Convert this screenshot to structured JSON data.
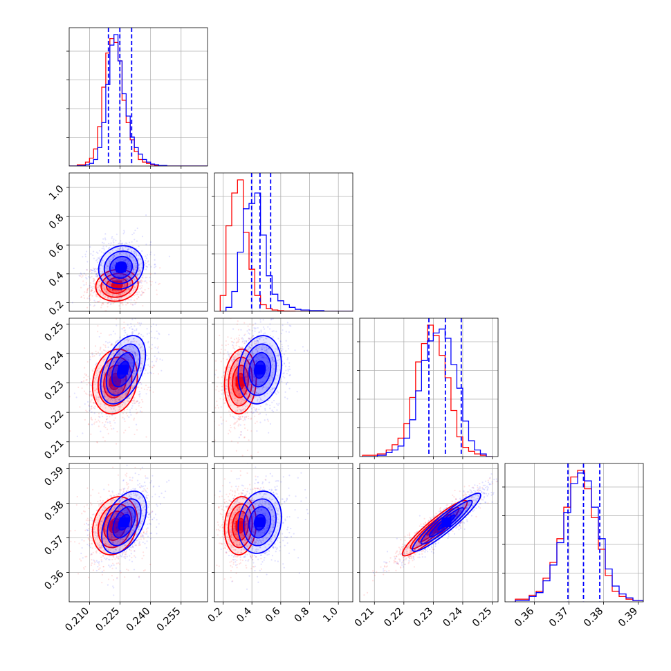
{
  "chart_data": {
    "type": "corner",
    "parameters": 4,
    "series_colors": {
      "red": "#ff0000",
      "blue": "#0000ff"
    },
    "axes": {
      "p0": {
        "range": [
          0.2,
          0.268
        ],
        "ticks": [
          "0.210",
          "0.225",
          "0.240",
          "0.255"
        ]
      },
      "p1": {
        "range": [
          0.14,
          1.1
        ],
        "ticks": [
          "0.2",
          "0.4",
          "0.6",
          "0.8",
          "1.0"
        ]
      },
      "p2": {
        "range": [
          0.205,
          0.252
        ],
        "ticks": [
          "0.21",
          "0.22",
          "0.23",
          "0.24",
          "0.25"
        ]
      },
      "p3": {
        "range": [
          0.3515,
          0.3915
        ],
        "ticks": [
          "0.36",
          "0.37",
          "0.38",
          "0.39"
        ]
      }
    },
    "marginals": [
      {
        "param": "p0",
        "bin_edges": [
          0.2,
          0.204,
          0.208,
          0.21,
          0.212,
          0.214,
          0.216,
          0.218,
          0.22,
          0.222,
          0.224,
          0.226,
          0.228,
          0.23,
          0.232,
          0.234,
          0.236,
          0.238,
          0.24,
          0.242,
          0.244,
          0.248,
          0.268
        ],
        "red": [
          0.0,
          0.01,
          0.03,
          0.06,
          0.13,
          0.3,
          0.6,
          0.86,
          0.97,
          0.94,
          0.8,
          0.5,
          0.33,
          0.2,
          0.11,
          0.05,
          0.03,
          0.02,
          0.01,
          0.005,
          0.002,
          0.0
        ],
        "blue": [
          0.0,
          0.002,
          0.01,
          0.02,
          0.05,
          0.14,
          0.33,
          0.62,
          0.92,
          1.0,
          0.8,
          0.55,
          0.38,
          0.22,
          0.14,
          0.09,
          0.05,
          0.03,
          0.015,
          0.01,
          0.004,
          0.0
        ],
        "quantiles": [
          0.2193,
          0.2249,
          0.2307
        ]
      },
      {
        "param": "p1",
        "bin_edges": [
          0.18,
          0.22,
          0.26,
          0.3,
          0.34,
          0.38,
          0.42,
          0.46,
          0.5,
          0.54,
          0.58,
          0.62,
          0.66,
          0.7,
          0.74,
          0.8,
          0.9,
          1.1
        ],
        "red": [
          0.12,
          0.65,
          0.9,
          1.0,
          0.6,
          0.32,
          0.12,
          0.05,
          0.02,
          0.01,
          0.005,
          0.002,
          0.001,
          0.0,
          0.0,
          0.0,
          0.0
        ],
        "blue": [
          0.0,
          0.03,
          0.15,
          0.45,
          0.78,
          0.82,
          0.9,
          0.58,
          0.27,
          0.13,
          0.08,
          0.05,
          0.03,
          0.015,
          0.01,
          0.005,
          0.0
        ],
        "quantiles": [
          0.398,
          0.456,
          0.53
        ]
      },
      {
        "param": "p2",
        "bin_edges": [
          0.206,
          0.211,
          0.214,
          0.216,
          0.218,
          0.22,
          0.222,
          0.224,
          0.226,
          0.228,
          0.23,
          0.232,
          0.234,
          0.236,
          0.238,
          0.24,
          0.242,
          0.244,
          0.246,
          0.248,
          0.25
        ],
        "red": [
          0.01,
          0.02,
          0.05,
          0.09,
          0.14,
          0.25,
          0.45,
          0.72,
          0.86,
          1.0,
          0.92,
          0.77,
          0.6,
          0.35,
          0.15,
          0.07,
          0.04,
          0.02,
          0.01,
          0.0
        ],
        "blue": [
          0.0,
          0.01,
          0.03,
          0.05,
          0.08,
          0.14,
          0.28,
          0.5,
          0.73,
          0.88,
          0.94,
          0.97,
          0.9,
          0.7,
          0.52,
          0.27,
          0.12,
          0.05,
          0.02,
          0.0
        ],
        "quantiles": [
          0.2285,
          0.2341,
          0.2395
        ]
      },
      {
        "param": "p3",
        "bin_edges": [
          0.3545,
          0.3585,
          0.3605,
          0.3625,
          0.3645,
          0.3665,
          0.3685,
          0.3705,
          0.3725,
          0.3745,
          0.3765,
          0.3785,
          0.3805,
          0.3825,
          0.3845,
          0.3865,
          0.3885,
          0.3915
        ],
        "red": [
          0.02,
          0.05,
          0.08,
          0.18,
          0.3,
          0.48,
          0.72,
          0.95,
          1.0,
          0.86,
          0.64,
          0.4,
          0.2,
          0.08,
          0.04,
          0.02,
          0.01
        ],
        "blue": [
          0.01,
          0.04,
          0.07,
          0.16,
          0.28,
          0.45,
          0.68,
          0.9,
          0.98,
          0.92,
          0.72,
          0.48,
          0.25,
          0.12,
          0.06,
          0.03,
          0.01
        ],
        "quantiles": [
          0.3697,
          0.3742,
          0.3789
        ]
      }
    ],
    "joint": [
      {
        "x": "p0",
        "y": "p1",
        "red": {
          "mean": [
            0.2235,
            0.32
          ],
          "sd": [
            0.0052,
            0.055
          ],
          "rho": 0.1
        },
        "blue": {
          "mean": [
            0.2255,
            0.445
          ],
          "sd": [
            0.0055,
            0.075
          ],
          "rho": 0.1
        }
      },
      {
        "x": "p0",
        "y": "p2",
        "red": {
          "mean": [
            0.2225,
            0.2305
          ],
          "sd": [
            0.0055,
            0.0055
          ],
          "rho": 0.15
        },
        "blue": {
          "mean": [
            0.2265,
            0.2345
          ],
          "sd": [
            0.0055,
            0.0058
          ],
          "rho": 0.45
        }
      },
      {
        "x": "p1",
        "y": "p2",
        "red": {
          "mean": [
            0.32,
            0.2305
          ],
          "sd": [
            0.055,
            0.0055
          ],
          "rho": 0.1
        },
        "blue": {
          "mean": [
            0.455,
            0.2345
          ],
          "sd": [
            0.075,
            0.0058
          ],
          "rho": 0.15
        }
      },
      {
        "x": "p0",
        "y": "p3",
        "red": {
          "mean": [
            0.2225,
            0.3735
          ],
          "sd": [
            0.0055,
            0.0042
          ],
          "rho": 0.2
        },
        "blue": {
          "mean": [
            0.227,
            0.3745
          ],
          "sd": [
            0.0055,
            0.0045
          ],
          "rho": 0.45
        }
      },
      {
        "x": "p1",
        "y": "p3",
        "red": {
          "mean": [
            0.32,
            0.3735
          ],
          "sd": [
            0.055,
            0.0042
          ],
          "rho": 0.1
        },
        "blue": {
          "mean": [
            0.455,
            0.3745
          ],
          "sd": [
            0.075,
            0.0045
          ],
          "rho": 0.15
        }
      },
      {
        "x": "p2",
        "y": "p3",
        "red": {
          "mean": [
            0.2305,
            0.3728
          ],
          "sd": [
            0.0055,
            0.004
          ],
          "rho": 0.93
        },
        "blue": {
          "mean": [
            0.2345,
            0.3745
          ],
          "sd": [
            0.0058,
            0.0042
          ],
          "rho": 0.93
        }
      }
    ],
    "contour_levels_sigma": [
      0.5,
      1.0,
      1.5,
      2.0
    ],
    "grid": true,
    "legend": "none",
    "title": "",
    "xlabel": "",
    "ylabel": ""
  }
}
